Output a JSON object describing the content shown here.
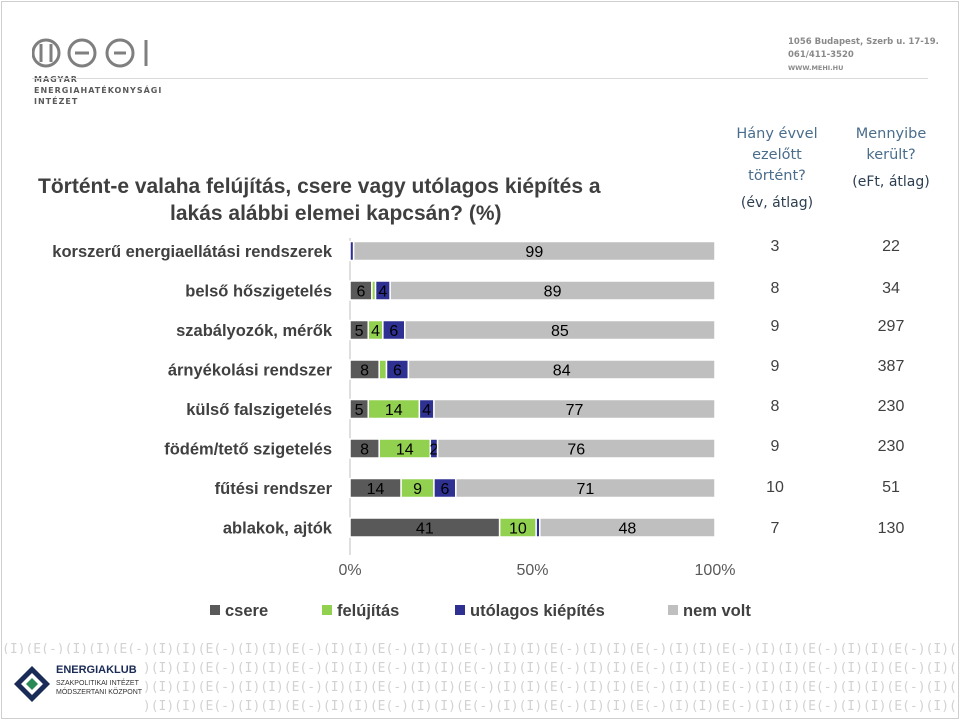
{
  "header": {
    "logo_caption": [
      "MAGYAR",
      "ENERGIAHATÉKONYSÁGI",
      "INTÉZET"
    ],
    "address_line1": "1056 Budapest, Szerb u. 17-19.",
    "address_line2": "061/411-3520",
    "website": "WWW.MEHI.HU"
  },
  "title_line1": "Történt-e valaha felújítás, csere vagy utólagos kiépítés a",
  "title_line2": "lakás alábbi elemei kapcsán? (%)",
  "columns": {
    "years": {
      "title1": "Hány évvel",
      "title2": "ezelőtt",
      "title3": "történt?",
      "unit": "(év, átlag)"
    },
    "cost": {
      "title1": "Mennyibe",
      "title2": "került?",
      "unit": "(eFt, átlag)"
    }
  },
  "rows_years": [
    "3",
    "8",
    "9",
    "9",
    "8",
    "9",
    "10",
    "7"
  ],
  "rows_cost": [
    "22",
    "34",
    "297",
    "387",
    "230",
    "230",
    "51",
    "130"
  ],
  "footer": {
    "org_name": "ENERGIAKLUB",
    "org_sub1": "SZAKPOLITIKAI INTÉZET",
    "org_sub2": "MÓDSZERTANI KÖZPONT",
    "pattern_unit": "(I)(E(-)(I)"
  },
  "colors": {
    "csere": "#595959",
    "felujitas": "#92d050",
    "utolagos": "#2e3192",
    "nem_volt": "#bfbfbf"
  },
  "chart_data": {
    "type": "bar",
    "orientation": "horizontal",
    "stacked": true,
    "categories": [
      "korszerű energiaellátási rendszerek",
      "belső hőszigetelés",
      "szabályozók, mérők",
      "árnyékolási rendszer",
      "külső falszigetelés",
      "födém/tető szigetelés",
      "fűtési rendszer",
      "ablakok, ajtók"
    ],
    "series": [
      {
        "name": "csere",
        "values": [
          0,
          6,
          5,
          8,
          5,
          8,
          14,
          41
        ]
      },
      {
        "name": "felújítás",
        "values": [
          0,
          1,
          4,
          2,
          14,
          14,
          9,
          10
        ]
      },
      {
        "name": "utólagos kiépítés",
        "values": [
          1,
          4,
          6,
          6,
          4,
          2,
          6,
          1
        ]
      },
      {
        "name": "nem volt",
        "values": [
          99,
          89,
          85,
          84,
          77,
          76,
          71,
          48
        ]
      }
    ],
    "labels": [
      [
        "",
        "",
        "",
        "99"
      ],
      [
        "6",
        "",
        "4",
        "89"
      ],
      [
        "5",
        "4",
        "6",
        "85"
      ],
      [
        "8",
        "",
        "6",
        "84"
      ],
      [
        "5",
        "14",
        "4",
        "77"
      ],
      [
        "8",
        "14",
        "2",
        "76"
      ],
      [
        "14",
        "9",
        "6",
        "71"
      ],
      [
        "41",
        "10",
        "",
        "48"
      ]
    ],
    "xticks": [
      "0%",
      "50%",
      "100%"
    ],
    "xlim": [
      0,
      100
    ],
    "legend_position": "bottom"
  }
}
